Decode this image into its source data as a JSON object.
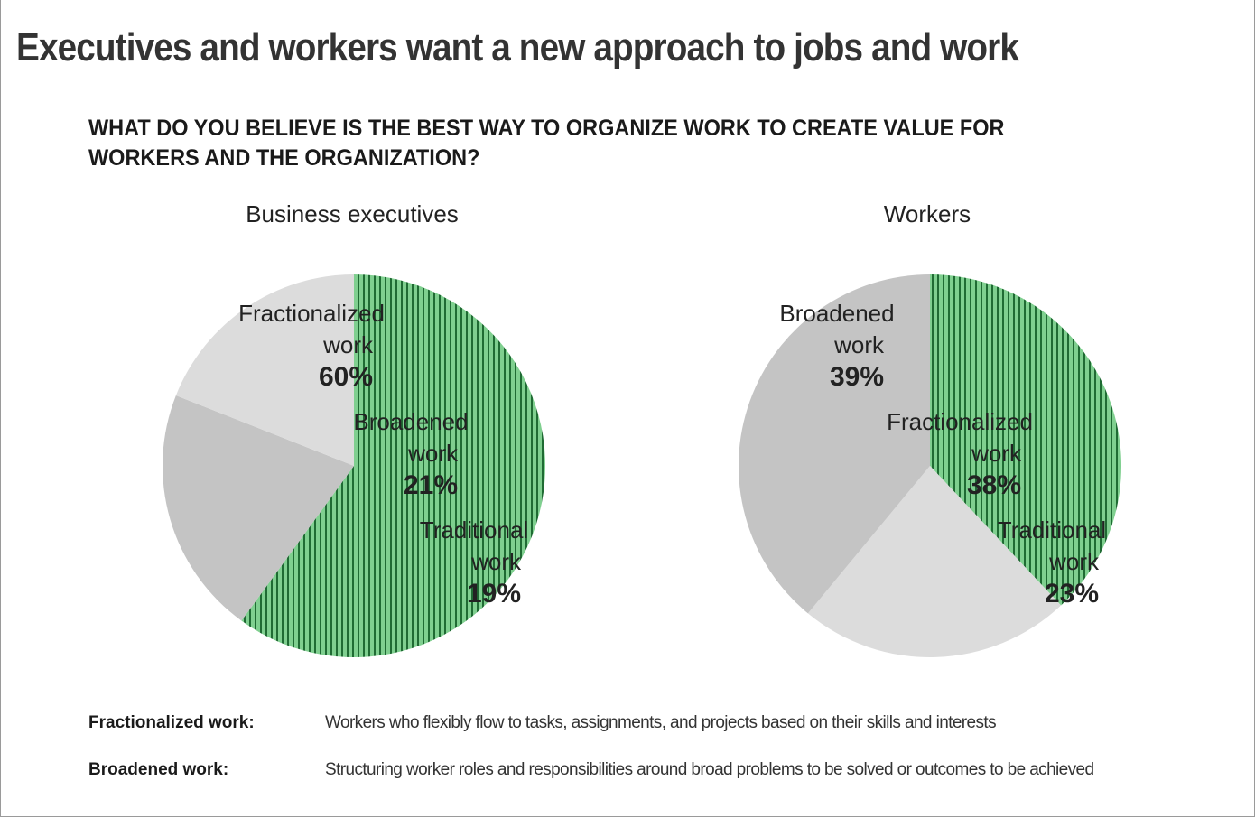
{
  "title": "Executives and workers want a new approach to jobs and work",
  "question": "WHAT DO YOU BELIEVE IS THE BEST WAY TO ORGANIZE WORK TO CREATE VALUE FOR WORKERS AND THE ORGANIZATION?",
  "colors": {
    "fractionalized_stripe_bg": "#7fcf8f",
    "fractionalized_stripe_line": "#1f6b33",
    "broadened": "#c4c4c4",
    "traditional": "#dcdcdc"
  },
  "chart_data": [
    {
      "type": "pie",
      "title": "Business executives",
      "slices": [
        {
          "name": "Fractionalized work",
          "label_line1": "Fractionalized",
          "label_line2": "work",
          "value": 60,
          "value_label": "60%",
          "fill": "stripe"
        },
        {
          "name": "Broadened work",
          "label_line1": "Broadened",
          "label_line2": "work",
          "value": 21,
          "value_label": "21%",
          "fill": "#c4c4c4"
        },
        {
          "name": "Traditional work",
          "label_line1": "Traditional",
          "label_line2": "work",
          "value": 19,
          "value_label": "19%",
          "fill": "#dcdcdc"
        }
      ]
    },
    {
      "type": "pie",
      "title": "Workers",
      "slices": [
        {
          "name": "Fractionalized work",
          "label_line1": "Fractionalized",
          "label_line2": "work",
          "value": 38,
          "value_label": "38%",
          "fill": "stripe"
        },
        {
          "name": "Traditional work",
          "label_line1": "Traditional",
          "label_line2": "work",
          "value": 23,
          "value_label": "23%",
          "fill": "#dcdcdc"
        },
        {
          "name": "Broadened work",
          "label_line1": "Broadened",
          "label_line2": "work",
          "value": 39,
          "value_label": "39%",
          "fill": "#c4c4c4"
        }
      ]
    }
  ],
  "definitions": [
    {
      "term": "Fractionalized work:",
      "description": "Workers who flexibly flow to tasks, assignments, and projects based on their skills and interests"
    },
    {
      "term": "Broadened work:",
      "description": "Structuring worker roles and responsibilities around broad problems to be solved or outcomes to be achieved"
    }
  ]
}
